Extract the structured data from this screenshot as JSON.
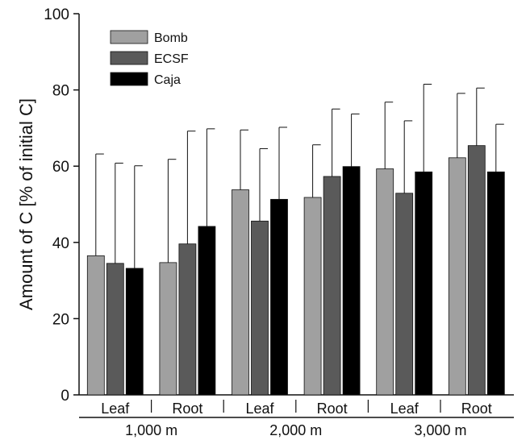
{
  "chart_data": {
    "type": "bar",
    "ylabel": "Amount of C [% of initial C]",
    "ylim": [
      0,
      100
    ],
    "yticks": [
      0,
      20,
      40,
      60,
      80,
      100
    ],
    "grid": false,
    "legend_position": "top-left",
    "categories": [
      "Leaf",
      "Root",
      "Leaf",
      "Root",
      "Leaf",
      "Root"
    ],
    "groups": [
      "1,000 m",
      "2,000 m",
      "3,000 m"
    ],
    "series": [
      {
        "name": "Bomb",
        "color": "#a0a0a0",
        "values": [
          36.5,
          34.7,
          53.8,
          51.8,
          59.3,
          62.2
        ],
        "error_upper": [
          63.2,
          61.8,
          69.5,
          65.6,
          76.8,
          79.1
        ]
      },
      {
        "name": "ECSF",
        "color": "#5a5a5a",
        "values": [
          34.5,
          39.6,
          45.6,
          57.3,
          52.9,
          65.4
        ],
        "error_upper": [
          60.8,
          69.2,
          64.6,
          75.0,
          71.9,
          80.5
        ]
      },
      {
        "name": "Caja",
        "color": "#000000",
        "values": [
          33.2,
          44.2,
          51.3,
          59.9,
          58.5,
          58.5
        ],
        "error_upper": [
          60.1,
          69.8,
          70.2,
          73.7,
          81.5,
          71.0
        ]
      }
    ]
  }
}
